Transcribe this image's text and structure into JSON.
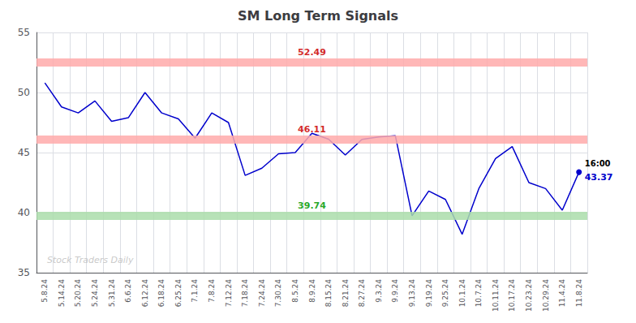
{
  "chart_data": {
    "type": "line",
    "title": "SM Long Term Signals",
    "categories": [
      "5.8.24",
      "5.14.24",
      "5.20.24",
      "5.24.24",
      "5.31.24",
      "6.6.24",
      "6.12.24",
      "6.18.24",
      "6.25.24",
      "7.1.24",
      "7.8.24",
      "7.12.24",
      "7.18.24",
      "7.24.24",
      "7.30.24",
      "8.5.24",
      "8.9.24",
      "8.15.24",
      "8.21.24",
      "8.27.24",
      "9.3.24",
      "9.9.24",
      "9.13.24",
      "9.19.24",
      "9.25.24",
      "10.1.24",
      "10.7.24",
      "10.11.24",
      "10.17.24",
      "10.23.24",
      "10.29.24",
      "11.4.24",
      "11.8.24"
    ],
    "values": [
      50.8,
      48.8,
      48.3,
      49.3,
      47.6,
      47.9,
      50.0,
      48.3,
      47.8,
      46.2,
      48.3,
      47.5,
      43.1,
      43.7,
      44.9,
      45.0,
      46.6,
      46.11,
      44.8,
      46.1,
      46.3,
      46.4,
      39.74,
      41.8,
      41.1,
      38.2,
      42.0,
      44.5,
      45.5,
      42.5,
      42.0,
      40.2,
      43.37
    ],
    "color": "#0000cc",
    "hlines": [
      {
        "value": 52.49,
        "color": "#ffaaaa",
        "label_color": "#cc0000"
      },
      {
        "value": 46.11,
        "color": "#ffaaaa",
        "label_color": "#cc0000"
      },
      {
        "value": 39.74,
        "color": "#aaddaa",
        "label_color": "#009900"
      }
    ],
    "annotations": [
      {
        "text": "16:00",
        "color": "#000000"
      },
      {
        "text": "43.37",
        "color": "#0000cc"
      }
    ],
    "watermark": "Stock Traders Daily",
    "ylim": [
      35,
      55
    ],
    "yticks": [
      35,
      40,
      45,
      50,
      55
    ],
    "grid": true
  }
}
